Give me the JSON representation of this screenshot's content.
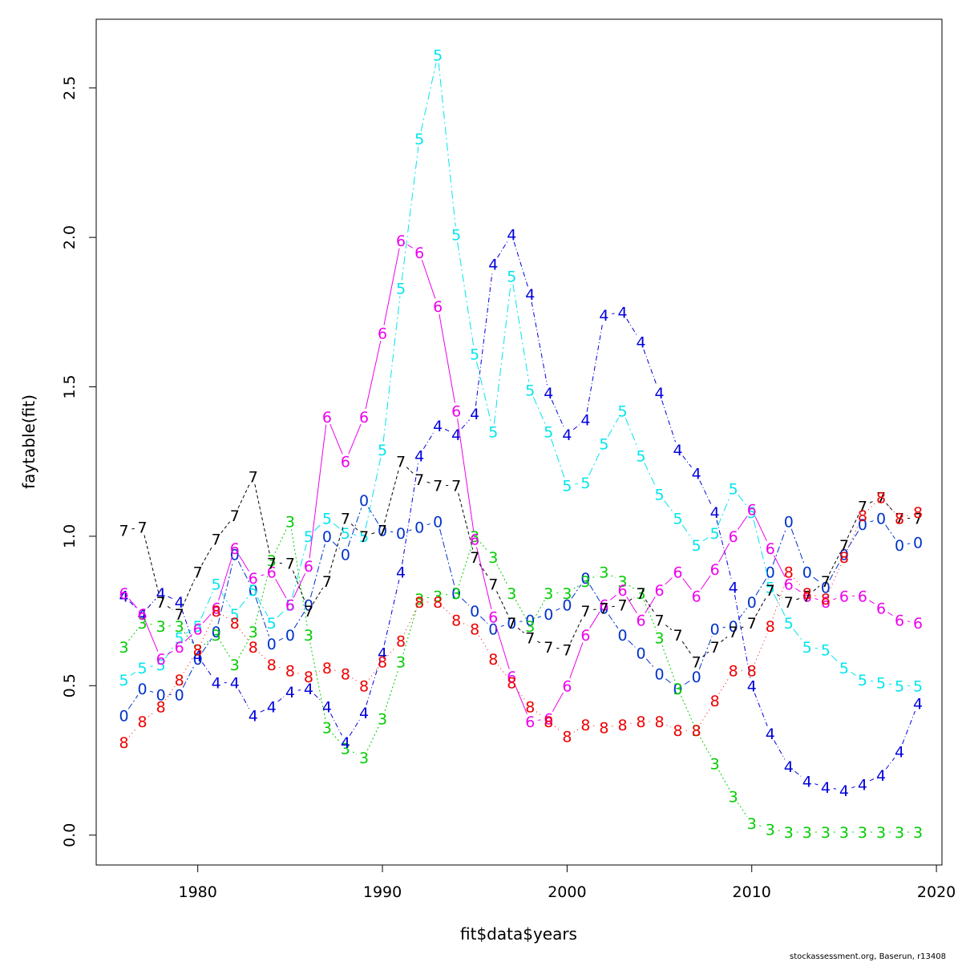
{
  "chart_data": {
    "type": "line",
    "xlabel": "fit$data$years",
    "ylabel": "faytable(fit)",
    "xlim": [
      1974.5,
      2020.3
    ],
    "ylim": [
      -0.1,
      2.73
    ],
    "xticks": [
      1980,
      1990,
      2000,
      2010,
      2020
    ],
    "yticks": [
      0.0,
      0.5,
      1.0,
      1.5,
      2.0,
      2.5
    ],
    "xtick_labels": [
      "1980",
      "1990",
      "2000",
      "2010",
      "2020"
    ],
    "ytick_labels": [
      "0.0",
      "0.5",
      "1.0",
      "1.5",
      "2.0",
      "2.5"
    ],
    "x": [
      1976,
      1977,
      1978,
      1979,
      1980,
      1981,
      1982,
      1983,
      1984,
      1985,
      1986,
      1987,
      1988,
      1989,
      1990,
      1991,
      1992,
      1993,
      1994,
      1995,
      1996,
      1997,
      1998,
      1999,
      2000,
      2001,
      2002,
      2003,
      2004,
      2005,
      2006,
      2007,
      2008,
      2009,
      2010,
      2011,
      2012,
      2013,
      2014,
      2015,
      2016,
      2017,
      2018,
      2019
    ],
    "series": [
      {
        "label": "0",
        "color": "#0033cc",
        "dash": "8,3,2,3",
        "values": [
          0.4,
          0.49,
          0.47,
          0.47,
          0.59,
          0.68,
          0.94,
          0.82,
          0.64,
          0.67,
          0.77,
          1.0,
          0.94,
          1.12,
          1.02,
          1.01,
          1.03,
          1.05,
          0.81,
          0.75,
          0.69,
          0.71,
          0.72,
          0.74,
          0.77,
          0.86,
          0.76,
          0.67,
          0.61,
          0.54,
          0.49,
          0.53,
          0.69,
          0.7,
          0.78,
          0.88,
          1.05,
          0.88,
          0.83,
          0.94,
          1.04,
          1.06,
          0.97,
          0.98
        ]
      },
      {
        "label": "3",
        "color": "#00cc00",
        "dash": "2,3",
        "values": [
          0.63,
          0.71,
          0.7,
          0.7,
          0.62,
          0.67,
          0.57,
          0.68,
          0.92,
          1.05,
          0.67,
          0.36,
          0.29,
          0.26,
          0.39,
          0.58,
          0.79,
          0.8,
          0.81,
          1.0,
          0.93,
          0.81,
          0.7,
          0.81,
          0.81,
          0.85,
          0.88,
          0.85,
          0.81,
          0.66,
          0.49,
          0.35,
          0.24,
          0.13,
          0.04,
          0.02,
          0.01,
          0.01,
          0.01,
          0.01,
          0.01,
          0.01,
          0.01,
          0.01
        ]
      },
      {
        "label": "4",
        "color": "#0000dd",
        "dash": "6,3,1,3",
        "values": [
          0.8,
          0.74,
          0.81,
          0.78,
          0.6,
          0.51,
          0.51,
          0.4,
          0.43,
          0.48,
          0.49,
          0.43,
          0.31,
          0.41,
          0.61,
          0.88,
          1.27,
          1.37,
          1.34,
          1.41,
          1.91,
          2.01,
          1.81,
          1.48,
          1.34,
          1.39,
          1.74,
          1.75,
          1.65,
          1.48,
          1.29,
          1.21,
          1.08,
          0.83,
          0.5,
          0.34,
          0.23,
          0.18,
          0.16,
          0.15,
          0.17,
          0.2,
          0.28,
          0.44
        ]
      },
      {
        "label": "5",
        "color": "#00e5ee",
        "dash": "10,4,2,4",
        "values": [
          0.52,
          0.56,
          0.57,
          0.66,
          0.7,
          0.84,
          0.74,
          0.82,
          0.71,
          0.77,
          1.0,
          1.06,
          1.01,
          1.0,
          1.29,
          1.83,
          2.33,
          2.61,
          2.01,
          1.61,
          1.35,
          1.87,
          1.49,
          1.35,
          1.17,
          1.18,
          1.31,
          1.42,
          1.27,
          1.14,
          1.06,
          0.97,
          1.01,
          1.16,
          1.08,
          0.83,
          0.71,
          0.63,
          0.62,
          0.56,
          0.52,
          0.51,
          0.5,
          0.5
        ]
      },
      {
        "label": "6",
        "color": "#ee00ee",
        "dash": "",
        "values": [
          0.81,
          0.74,
          0.59,
          0.63,
          0.69,
          0.76,
          0.96,
          0.86,
          0.88,
          0.77,
          0.9,
          1.4,
          1.25,
          1.4,
          1.68,
          1.99,
          1.95,
          1.77,
          1.42,
          0.99,
          0.73,
          0.53,
          0.38,
          0.39,
          0.5,
          0.67,
          0.77,
          0.82,
          0.72,
          0.82,
          0.88,
          0.8,
          0.89,
          1.0,
          1.09,
          0.96,
          0.84,
          0.8,
          0.78,
          0.8,
          0.8,
          0.76,
          0.72,
          0.71
        ]
      },
      {
        "label": "7",
        "color": "#000000",
        "dash": "4,3",
        "values": [
          1.02,
          1.03,
          0.78,
          0.74,
          0.88,
          0.99,
          1.07,
          1.2,
          0.91,
          0.91,
          0.75,
          0.85,
          1.06,
          1.0,
          1.02,
          1.25,
          1.19,
          1.17,
          1.17,
          0.93,
          0.84,
          0.71,
          0.66,
          0.63,
          0.62,
          0.75,
          0.76,
          0.77,
          0.81,
          0.72,
          0.67,
          0.58,
          0.63,
          0.68,
          0.71,
          0.82,
          0.78,
          0.8,
          0.85,
          0.97,
          1.1,
          1.13,
          1.06,
          1.06
        ]
      },
      {
        "label": "8",
        "color": "#ee0000",
        "dash": "1,4",
        "values": [
          0.31,
          0.38,
          0.43,
          0.52,
          0.62,
          0.75,
          0.71,
          0.63,
          0.57,
          0.55,
          0.53,
          0.56,
          0.54,
          0.5,
          0.58,
          0.65,
          0.78,
          0.78,
          0.72,
          0.69,
          0.59,
          0.51,
          0.43,
          0.38,
          0.33,
          0.37,
          0.36,
          0.37,
          0.38,
          0.38,
          0.35,
          0.35,
          0.45,
          0.55,
          0.55,
          0.7,
          0.88,
          0.81,
          0.79,
          0.93,
          1.07,
          1.13,
          1.06,
          1.08
        ]
      }
    ]
  },
  "credit": "stockassessment.org, Baserun, r13408"
}
